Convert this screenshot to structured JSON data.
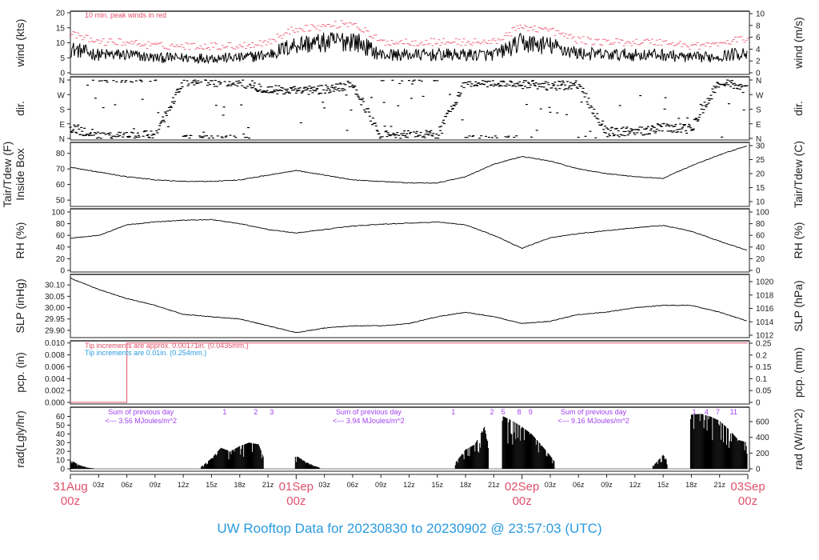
{
  "title": "UW Rooftop Data for 20230830  to  20230902 @ 23:57:03  (UTC)",
  "colors": {
    "title": "#2a9ae0",
    "red": "#e0506a",
    "blue": "#2a9ae0",
    "purple": "#a040f0",
    "peak": "#f07088",
    "line": "#000000"
  },
  "chart_data": [
    {
      "type": "line",
      "id": "wind",
      "ylabel": "wind (kts)",
      "ylabel_right": "wind (m/s)",
      "ylim": [
        0,
        20
      ],
      "yticks": [
        0,
        5,
        10,
        15,
        20
      ],
      "ylim_right": [
        0,
        10.3
      ],
      "yticks_right": [
        0,
        2,
        4,
        6,
        8,
        10
      ],
      "annotation": "10 min. peak winds in red",
      "x_hours_3h": [
        0,
        3,
        6,
        9,
        12,
        15,
        18,
        21,
        24,
        27,
        30,
        33,
        36,
        39,
        42,
        45,
        48,
        51,
        54,
        57,
        60,
        63,
        66,
        69,
        72
      ],
      "mean_kts": [
        8,
        6,
        6,
        5,
        5,
        5,
        5,
        6,
        9.5,
        10,
        11,
        6,
        6,
        6,
        6,
        6,
        10,
        9,
        6.5,
        6,
        6,
        6,
        5,
        5.5,
        7
      ],
      "peak_offset_kts": 3
    },
    {
      "type": "scatter",
      "id": "dir",
      "ylabel": "dir.",
      "ylabel_right": "dir.",
      "ylim": [
        0,
        360
      ],
      "ytick_labels": [
        "N",
        "E",
        "S",
        "W",
        "N"
      ],
      "x_hours_3h": [
        0,
        3,
        6,
        9,
        12,
        15,
        18,
        21,
        24,
        27,
        30,
        33,
        36,
        39,
        42,
        45,
        48,
        51,
        54,
        57,
        60,
        63,
        66,
        69,
        72
      ],
      "dominant_deg": [
        60,
        20,
        10,
        20,
        350,
        350,
        350,
        300,
        290,
        300,
        330,
        20,
        20,
        20,
        350,
        345,
        350,
        320,
        330,
        40,
        40,
        70,
        60,
        350,
        320
      ]
    },
    {
      "type": "line",
      "id": "tair",
      "ylabel": "Inside Box",
      "ylabel_outer": "Tair/Tdew (F)",
      "ylabel_right": "Tair/Tdew (C)",
      "ylim": [
        47,
        87
      ],
      "yticks": [
        50,
        60,
        70,
        80
      ],
      "yticks_right": [
        10,
        15,
        20,
        25,
        30
      ],
      "x_hours_3h": [
        0,
        3,
        6,
        9,
        12,
        15,
        18,
        21,
        24,
        27,
        30,
        33,
        36,
        39,
        42,
        45,
        48,
        51,
        54,
        57,
        60,
        63,
        66,
        69,
        72
      ],
      "values": [
        71,
        68,
        65,
        63,
        62,
        62,
        63,
        66,
        69,
        66,
        63,
        62,
        61,
        61,
        65,
        73,
        78,
        75,
        70,
        67,
        65,
        64,
        72,
        79,
        85
      ]
    },
    {
      "type": "line",
      "id": "rh",
      "ylabel": "RH (%)",
      "ylabel_right": "RH (%)",
      "ylim": [
        0,
        100
      ],
      "yticks": [
        0,
        20,
        40,
        60,
        80,
        100
      ],
      "x_hours_3h": [
        0,
        3,
        6,
        9,
        12,
        15,
        18,
        21,
        24,
        27,
        30,
        33,
        36,
        39,
        42,
        45,
        48,
        51,
        54,
        57,
        60,
        63,
        66,
        69,
        72
      ],
      "values": [
        55,
        60,
        78,
        83,
        86,
        87,
        80,
        70,
        64,
        70,
        76,
        79,
        81,
        83,
        78,
        60,
        38,
        56,
        63,
        68,
        73,
        77,
        67,
        50,
        34
      ]
    },
    {
      "type": "line",
      "id": "slp",
      "ylabel": "SLP (inHg)",
      "ylabel_right": "SLP (hPa)",
      "ylim": [
        29.875,
        30.15
      ],
      "yticks": [
        29.9,
        29.95,
        30.0,
        30.05,
        30.1
      ],
      "ytick_labels": [
        "29.90",
        "29.95",
        "30.00",
        "30.05",
        "30.10"
      ],
      "yticks_right": [
        1012,
        1014,
        1016,
        1018,
        1020
      ],
      "x_hours_3h": [
        0,
        3,
        6,
        9,
        12,
        15,
        18,
        21,
        24,
        27,
        30,
        33,
        36,
        39,
        42,
        45,
        48,
        51,
        54,
        57,
        60,
        63,
        66,
        69,
        72
      ],
      "values": [
        30.13,
        30.08,
        30.04,
        30.01,
        29.97,
        29.96,
        29.95,
        29.92,
        29.89,
        29.91,
        29.92,
        29.92,
        29.93,
        29.96,
        29.98,
        29.96,
        29.93,
        29.94,
        29.97,
        29.98,
        30.0,
        30.01,
        30.01,
        29.98,
        29.94
      ]
    },
    {
      "type": "line",
      "id": "pcp",
      "ylabel": "pcp. (in)",
      "ylabel_right": "pcp. (mm)",
      "ylim": [
        0,
        0.0105
      ],
      "yticks": [
        0.0,
        0.002,
        0.004,
        0.006,
        0.008,
        0.01
      ],
      "ytick_labels": [
        "0.000",
        "0.002",
        "0.004",
        "0.006",
        "0.008",
        "0.010"
      ],
      "yticks_right": [
        "0",
        "0.05",
        "0.1",
        "0.15",
        "0.2",
        "0.25"
      ],
      "note_red": "Tip increments are approx. 0.00171in. (0.0435mm.)",
      "note_blue": "Tip increments are 0.01in. (0.254mm.)",
      "step_hour": 6,
      "before": 0.0,
      "after": 0.01
    },
    {
      "type": "bar",
      "id": "rad",
      "ylabel": "rad(Lgly/hr)",
      "ylabel_right": "rad (W/m^2)",
      "ylim": [
        0,
        66
      ],
      "yticks": [
        0,
        10,
        20,
        30,
        40,
        50,
        60
      ],
      "yticks_right": [
        0,
        200,
        400,
        600
      ],
      "hourly_lgly": [
        10,
        4,
        1,
        0,
        0,
        0,
        0,
        0,
        0,
        0,
        0,
        0,
        0,
        0,
        3,
        12,
        24,
        20,
        26,
        30,
        28,
        0,
        0,
        0,
        15,
        8,
        3,
        0,
        0,
        0,
        0,
        0,
        0,
        0,
        0,
        0,
        0,
        0,
        0,
        0,
        0,
        8,
        22,
        28,
        48,
        0,
        60,
        55,
        48,
        40,
        28,
        15,
        0,
        0,
        0,
        0,
        0,
        0,
        0,
        0,
        0,
        0,
        4,
        16,
        0,
        0,
        62,
        63,
        60,
        55,
        45,
        33,
        30
      ],
      "sums": [
        {
          "line1": "Sum of previous day",
          "line2": "<--- 3.56 MJoules/m^2",
          "hour": 7.5
        },
        {
          "line1": "Sum of previous day",
          "line2": "<--- 3.94 MJoules/m^2",
          "hour": 31.7
        },
        {
          "line1": "Sum of previous day",
          "line2": "<--- 9.16 MJoules/m^2",
          "hour": 55.6
        }
      ],
      "event_marks": [
        {
          "label": "1",
          "hour": 16.4
        },
        {
          "label": "2",
          "hour": 19.7
        },
        {
          "label": "3",
          "hour": 21.4
        },
        {
          "label": "1",
          "hour": 40.7
        },
        {
          "label": "2",
          "hour": 44.8
        },
        {
          "label": "5",
          "hour": 46.0
        },
        {
          "label": "8",
          "hour": 47.7
        },
        {
          "label": "9",
          "hour": 48.9
        },
        {
          "label": "1",
          "hour": 66.3
        },
        {
          "label": "4",
          "hour": 67.6
        },
        {
          "label": "7",
          "hour": 68.8
        },
        {
          "label": "11",
          "hour": 70.5
        }
      ]
    }
  ],
  "xaxis": {
    "minor": [
      {
        "h": 3,
        "label": "03z"
      },
      {
        "h": 6,
        "label": "06z"
      },
      {
        "h": 9,
        "label": "09z"
      },
      {
        "h": 12,
        "label": "12z"
      },
      {
        "h": 15,
        "label": "15z"
      },
      {
        "h": 18,
        "label": "18z"
      },
      {
        "h": 21,
        "label": "21z"
      },
      {
        "h": 27,
        "label": "03z"
      },
      {
        "h": 30,
        "label": "06z"
      },
      {
        "h": 33,
        "label": "09z"
      },
      {
        "h": 36,
        "label": "12z"
      },
      {
        "h": 39,
        "label": "15z"
      },
      {
        "h": 42,
        "label": "18z"
      },
      {
        "h": 45,
        "label": "21z"
      },
      {
        "h": 51,
        "label": "03z"
      },
      {
        "h": 54,
        "label": "06z"
      },
      {
        "h": 57,
        "label": "09z"
      },
      {
        "h": 60,
        "label": "12z"
      },
      {
        "h": 63,
        "label": "15z"
      },
      {
        "h": 66,
        "label": "18z"
      },
      {
        "h": 69,
        "label": "21z"
      }
    ],
    "major": [
      {
        "h": 0,
        "day": "31Aug",
        "hour": "00z"
      },
      {
        "h": 24,
        "day": "01Sep",
        "hour": "00z"
      },
      {
        "h": 48,
        "day": "02Sep",
        "hour": "00z"
      },
      {
        "h": 72,
        "day": "03Sep",
        "hour": "00z"
      }
    ]
  }
}
